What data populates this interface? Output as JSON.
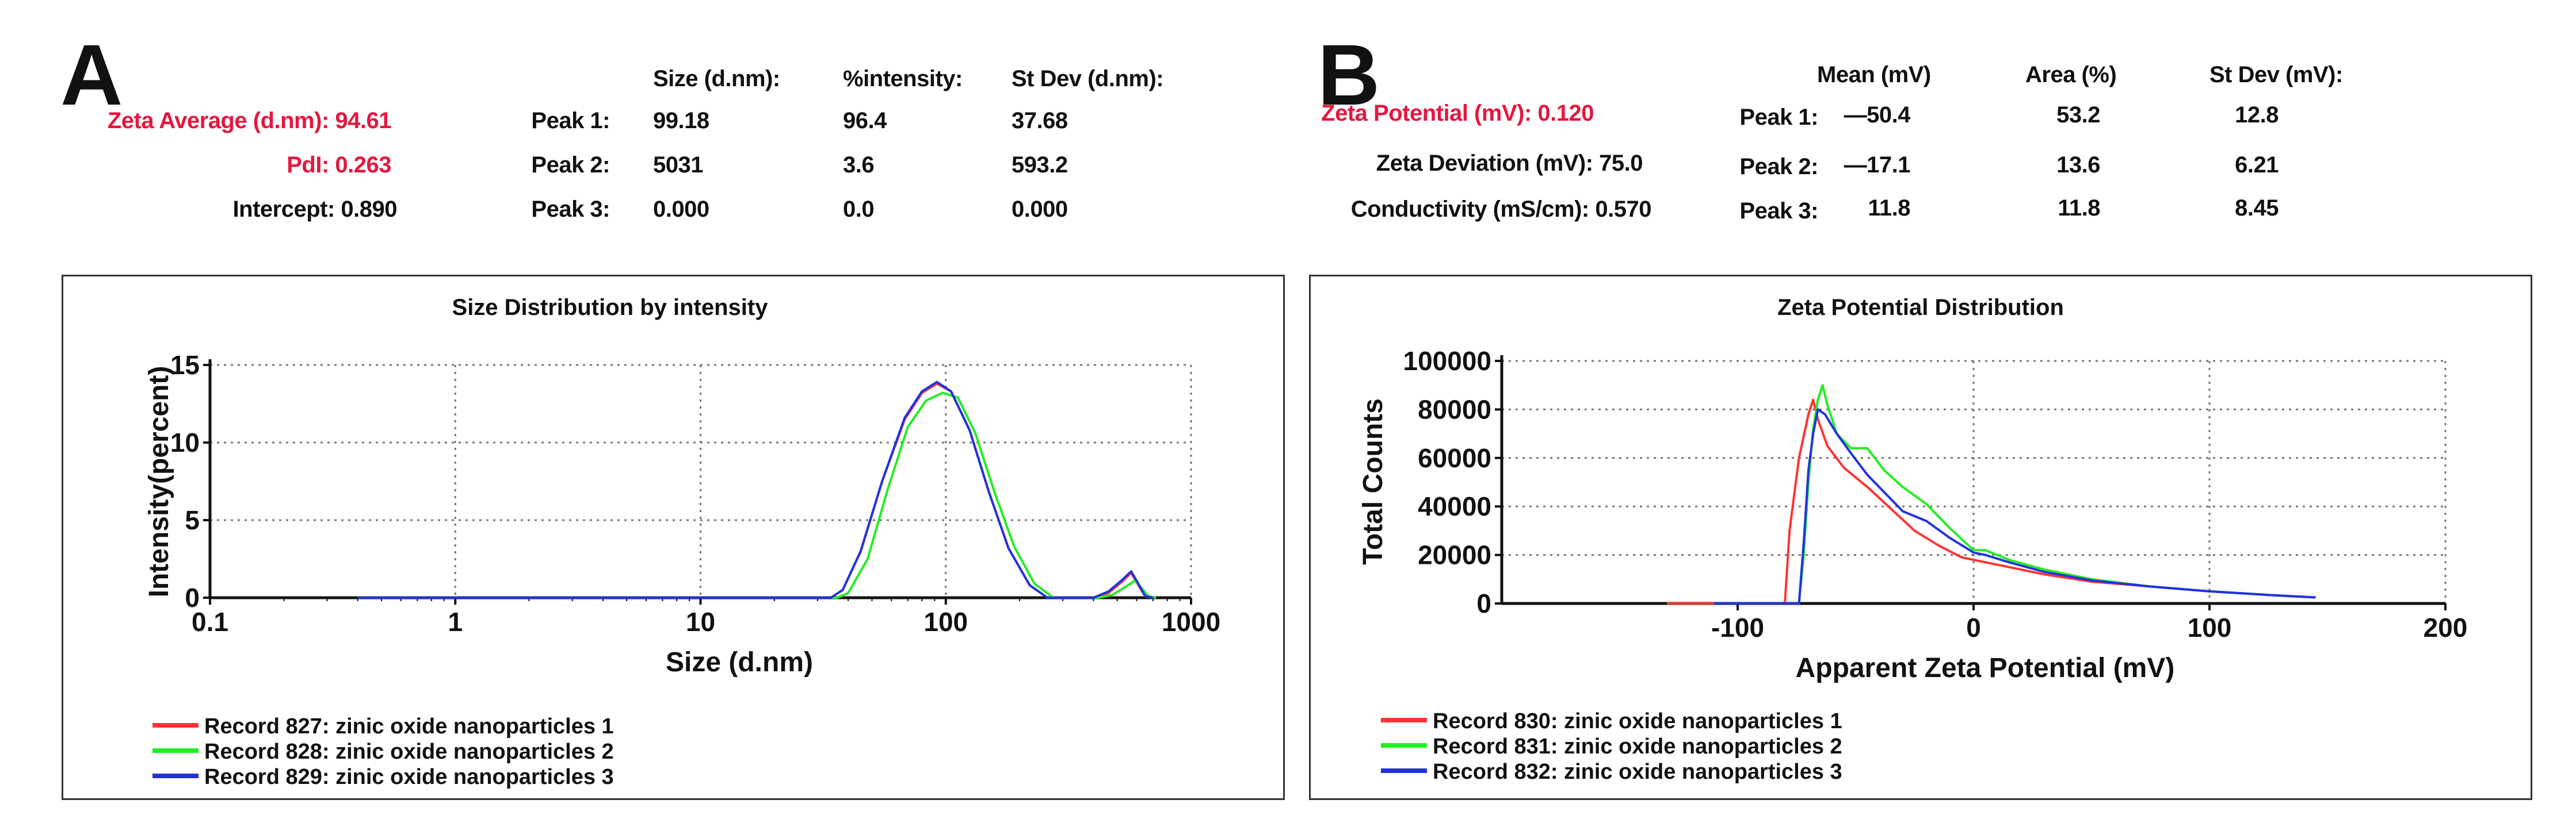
{
  "panel_a": {
    "letter": "A",
    "left_stats": [
      {
        "label": "Zeta Average (d.nm):",
        "value": "94.61",
        "highlight": true
      },
      {
        "label": "PdI:",
        "value": "0.263",
        "highlight": true
      },
      {
        "label": "Intercept:",
        "value": "0.890",
        "highlight": false
      }
    ],
    "table": {
      "headers": [
        "Size (d.nm):",
        "%intensity:",
        "St Dev (d.nm):"
      ],
      "rows": [
        {
          "label": "Peak 1:",
          "cells": [
            "99.18",
            "96.4",
            "37.68"
          ]
        },
        {
          "label": "Peak 2:",
          "cells": [
            "5031",
            "3.6",
            "593.2"
          ]
        },
        {
          "label": "Peak 3:",
          "cells": [
            "0.000",
            "0.0",
            "0.000"
          ]
        }
      ]
    }
  },
  "panel_b": {
    "letter": "B",
    "left_stats": [
      {
        "label": "Zeta Potential (mV):",
        "value": "0.120",
        "highlight": true
      },
      {
        "label": "Zeta Deviation (mV):",
        "value": "75.0",
        "highlight": false
      },
      {
        "label": "Conductivity (mS/cm):",
        "value": "0.570",
        "highlight": false
      }
    ],
    "table": {
      "headers": [
        "Mean (mV)",
        "Area (%)",
        "St Dev (mV):"
      ],
      "rows": [
        {
          "label": "Peak 1:",
          "cells": [
            "—50.4",
            "53.2",
            "12.8"
          ]
        },
        {
          "label": "Peak 2:",
          "cells": [
            "—17.1",
            "13.6",
            "6.21"
          ]
        },
        {
          "label": "Peak 3:",
          "cells": [
            "11.8",
            "11.8",
            "8.45"
          ]
        }
      ]
    }
  },
  "chart_data": [
    {
      "type": "line",
      "title": "Size Distribution by intensity",
      "xlabel": "Size (d.nm)",
      "ylabel": "Intensity(percent)",
      "xscale": "log",
      "xlim": [
        0.1,
        1000
      ],
      "ylim": [
        0,
        15
      ],
      "xticks": [
        0.1,
        1,
        10,
        100,
        1000
      ],
      "xtick_labels": [
        "0.1",
        "1",
        "10",
        "100",
        "1000"
      ],
      "yticks": [
        0,
        5,
        10,
        15
      ],
      "ytick_labels": [
        "0",
        "5",
        "10",
        "15"
      ],
      "grid": true,
      "legend_position": "bottom-left",
      "series": [
        {
          "name": "Record 827: zinic oxide nanoparticles 1",
          "color": "#ff3333",
          "x": [
            0.4,
            34,
            38,
            45,
            55,
            68,
            80,
            92,
            105,
            125,
            150,
            180,
            220,
            260,
            300,
            400,
            460,
            520,
            570,
            610,
            650,
            700
          ],
          "y": [
            0,
            0,
            0.5,
            3,
            7.5,
            11.5,
            13.2,
            13.8,
            13.3,
            10.8,
            6.8,
            3.2,
            0.8,
            0,
            0,
            0,
            0.3,
            1.0,
            1.6,
            0.8,
            0.1,
            0
          ]
        },
        {
          "name": "Record 828: zinic oxide nanoparticles 2",
          "color": "#22ee22",
          "x": [
            0.4,
            36,
            40,
            48,
            58,
            70,
            83,
            97,
            112,
            132,
            158,
            190,
            230,
            275,
            320,
            420,
            480,
            540,
            590,
            630,
            670,
            720
          ],
          "y": [
            0,
            0,
            0.3,
            2.5,
            7,
            11,
            12.7,
            13.2,
            12.9,
            10.6,
            6.8,
            3.3,
            0.9,
            0,
            0,
            0,
            0.2,
            0.7,
            1.1,
            0.6,
            0.1,
            0
          ]
        },
        {
          "name": "Record 829: zinic oxide nanoparticles 3",
          "color": "#2233dd",
          "x": [
            0.4,
            34,
            38,
            45,
            55,
            68,
            80,
            92,
            105,
            125,
            150,
            180,
            220,
            260,
            300,
            400,
            460,
            520,
            570,
            610,
            650,
            700
          ],
          "y": [
            0,
            0,
            0.5,
            3,
            7.5,
            11.6,
            13.3,
            13.9,
            13.3,
            10.8,
            6.8,
            3.2,
            0.8,
            0,
            0,
            0,
            0.4,
            1.1,
            1.7,
            0.9,
            0.1,
            0
          ]
        }
      ],
      "legend": [
        {
          "name": "Record 827: zinic oxide nanoparticles 1",
          "color": "#ff3333"
        },
        {
          "name": "Record 828: zinic oxide nanoparticles 2",
          "color": "#22ee22"
        },
        {
          "name": "Record 829: zinic oxide nanoparticles 3",
          "color": "#2233dd"
        }
      ]
    },
    {
      "type": "line",
      "title": "Zeta Potential Distribution",
      "xlabel": "Apparent Zeta Potential (mV)",
      "ylabel": "Total Counts",
      "xscale": "linear",
      "xlim": [
        -200,
        200
      ],
      "ylim": [
        0,
        100000
      ],
      "xticks": [
        -100,
        0,
        100,
        200
      ],
      "xtick_labels": [
        "-100",
        "0",
        "100",
        "200"
      ],
      "yticks": [
        0,
        20000,
        40000,
        60000,
        80000,
        100000
      ],
      "ytick_labels": [
        "0",
        "20000",
        "40000",
        "60000",
        "80000",
        "100000"
      ],
      "grid": true,
      "legend_position": "bottom-left",
      "series": [
        {
          "name": "Record 830: zinic oxide nanoparticles 1",
          "color": "#ff3333",
          "x": [
            -130,
            -80,
            -78,
            -74,
            -70,
            -68,
            -66,
            -62,
            -55,
            -45,
            -35,
            -25,
            -15,
            -5,
            5,
            15,
            30,
            50,
            75,
            100,
            125,
            145
          ],
          "y": [
            0,
            0,
            30000,
            60000,
            78000,
            84000,
            76000,
            65000,
            56000,
            48000,
            39000,
            30000,
            24000,
            19000,
            17000,
            15000,
            12000,
            9000,
            7000,
            5000,
            3500,
            2500
          ]
        },
        {
          "name": "Record 831: zinic oxide nanoparticles 2",
          "color": "#22ee22",
          "x": [
            -110,
            -74,
            -72,
            -70,
            -68,
            -66,
            -64,
            -62,
            -58,
            -52,
            -45,
            -38,
            -30,
            -20,
            -10,
            0,
            5,
            15,
            30,
            50,
            75,
            100,
            125,
            145
          ],
          "y": [
            0,
            0,
            20000,
            50000,
            72000,
            84000,
            90000,
            82000,
            70000,
            64000,
            64000,
            55000,
            48000,
            41000,
            31000,
            22000,
            22000,
            18000,
            14000,
            10000,
            7000,
            5000,
            3500,
            2500
          ]
        },
        {
          "name": "Record 832: zinic oxide nanoparticles 3",
          "color": "#2233dd",
          "x": [
            -110,
            -74,
            -72,
            -70,
            -68,
            -66,
            -63,
            -58,
            -52,
            -45,
            -38,
            -30,
            -20,
            -10,
            0,
            5,
            15,
            30,
            50,
            75,
            100,
            125,
            145
          ],
          "y": [
            0,
            0,
            25000,
            55000,
            70000,
            80000,
            78000,
            70000,
            62000,
            53000,
            46000,
            38000,
            34000,
            27000,
            21000,
            20000,
            17000,
            13000,
            9500,
            7000,
            5000,
            3500,
            2500
          ]
        }
      ],
      "legend": [
        {
          "name": "Record 830: zinic oxide nanoparticles 1",
          "color": "#ff3333"
        },
        {
          "name": "Record 831: zinic oxide nanoparticles 2",
          "color": "#22ee22"
        },
        {
          "name": "Record 832: zinic oxide nanoparticles 3",
          "color": "#2233dd"
        }
      ]
    }
  ]
}
